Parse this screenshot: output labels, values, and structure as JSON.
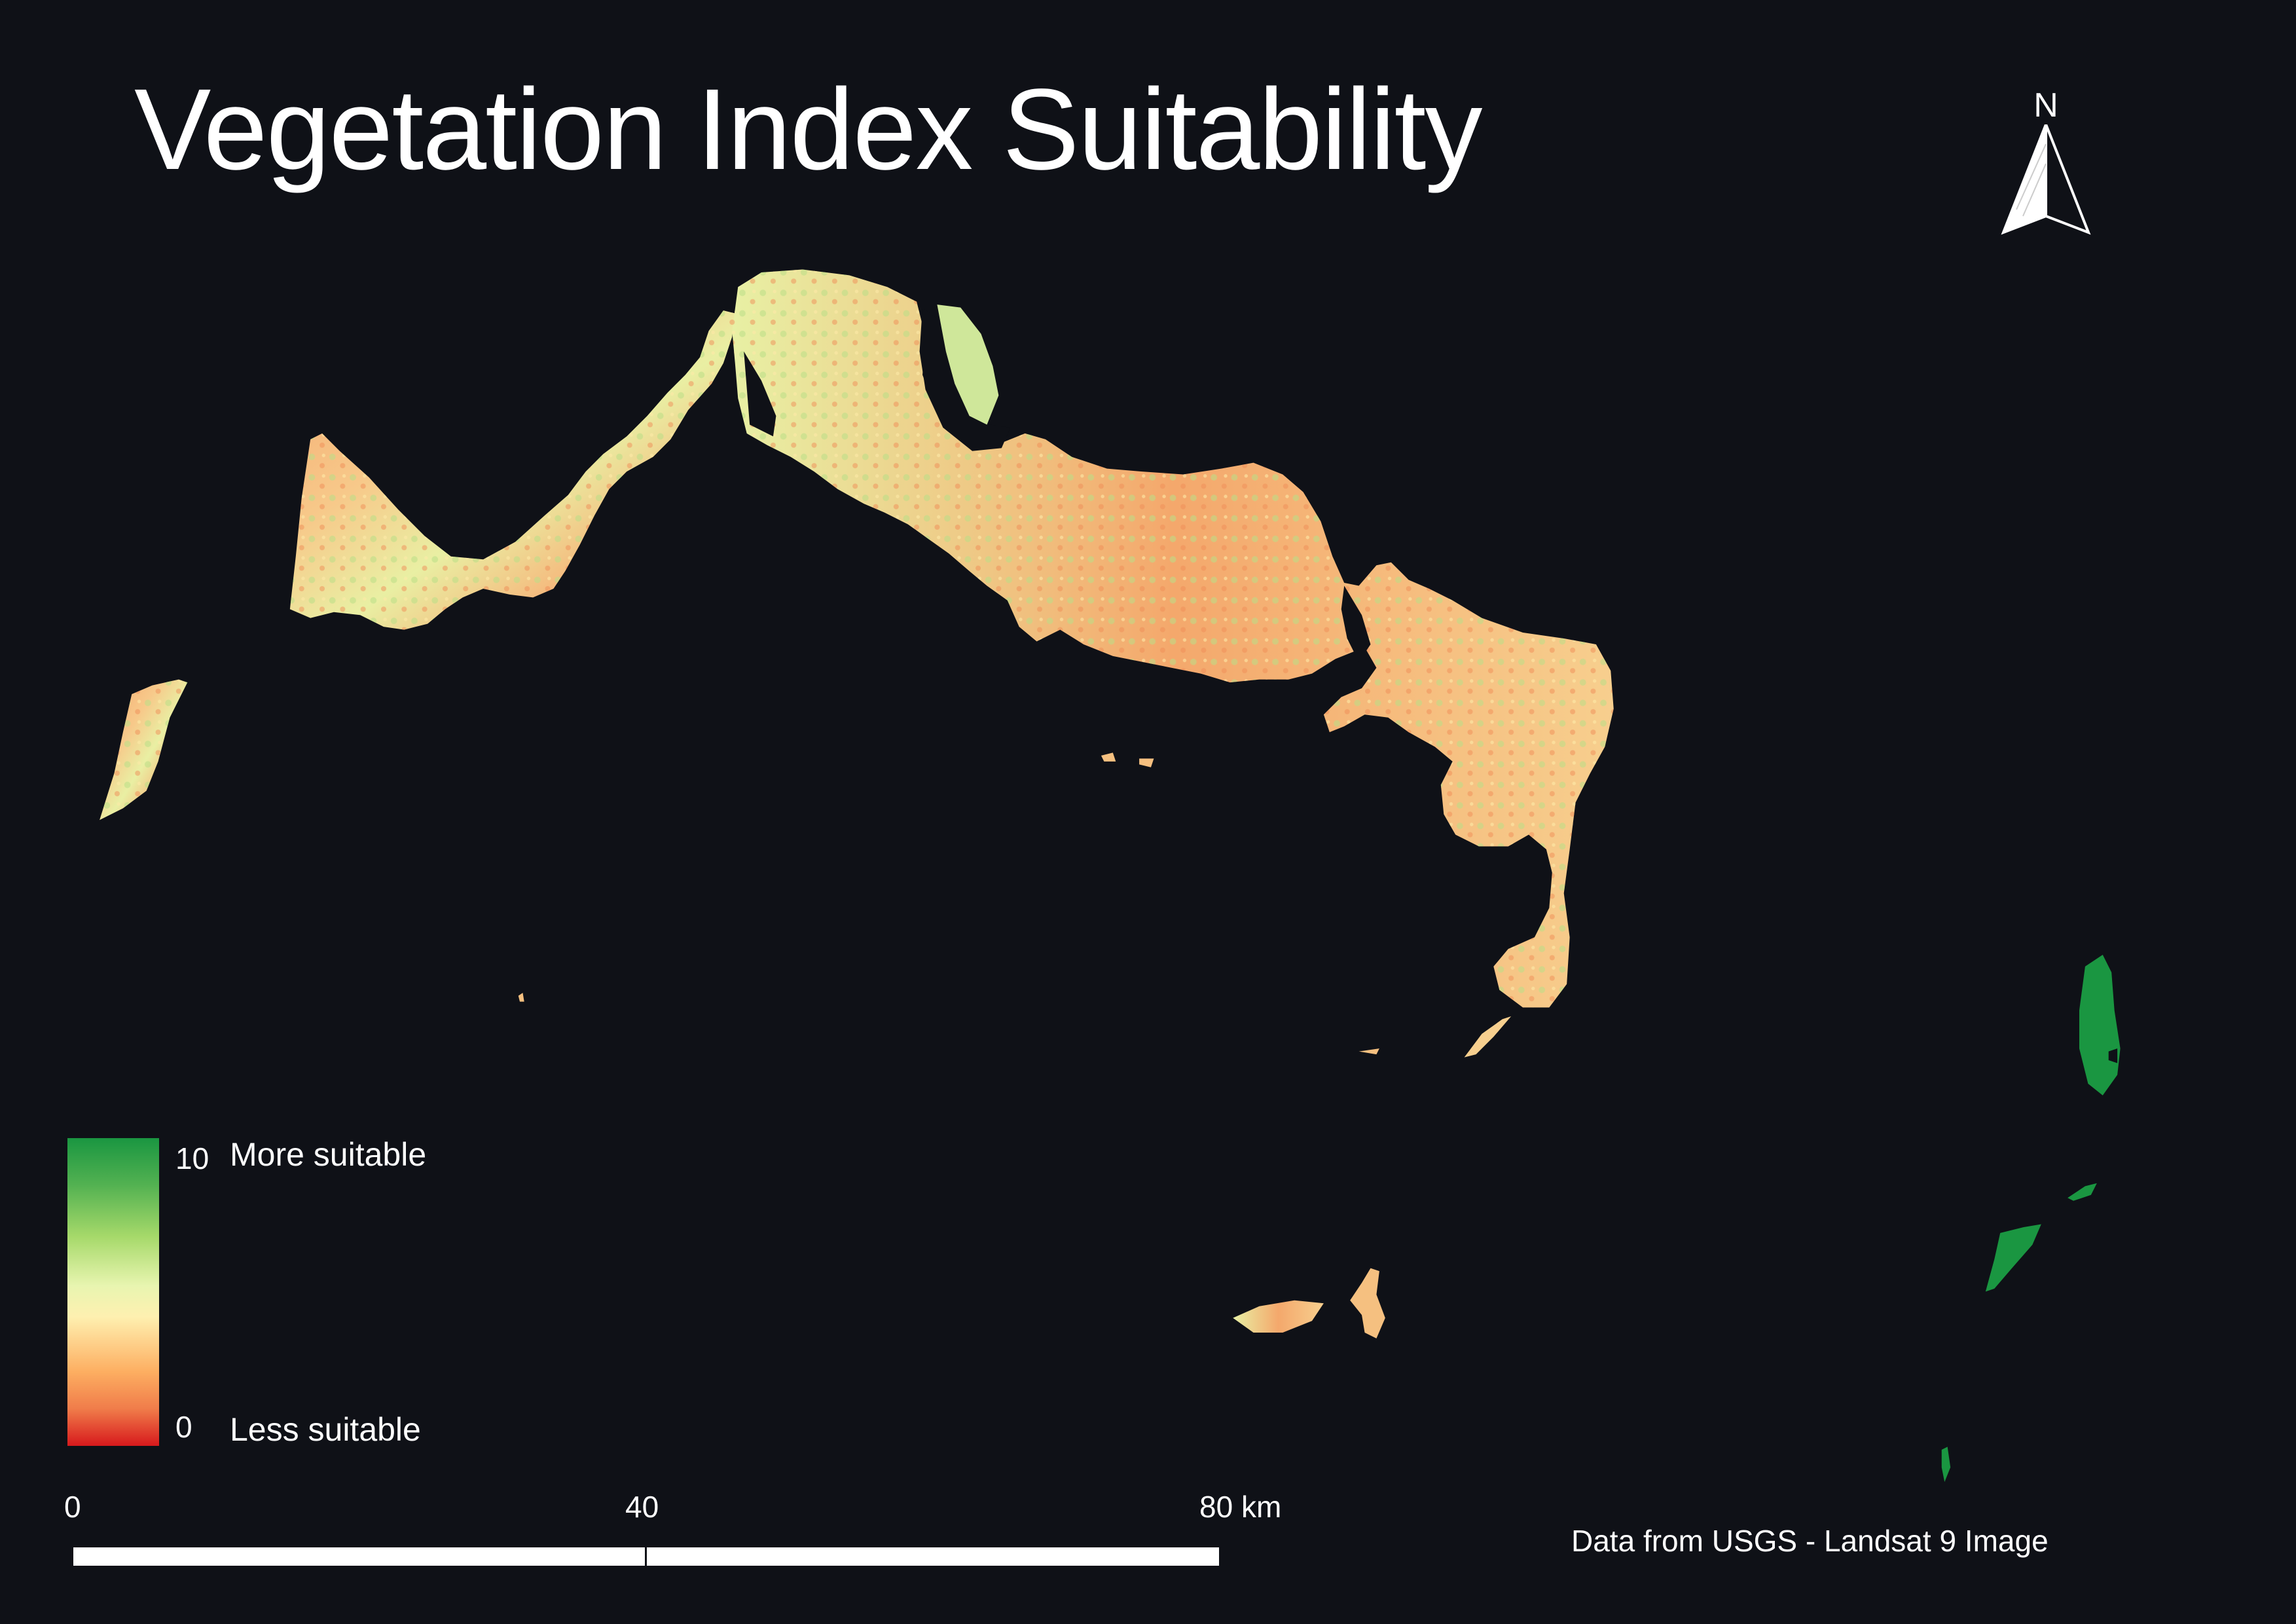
{
  "map": {
    "title": "Vegetation Index Suitability",
    "north_arrow": {
      "label": "N"
    },
    "legend": {
      "max_value": "10",
      "max_label": "More suitable",
      "min_value": "0",
      "min_label": "Less suitable",
      "ramp_colors": [
        "#1a9641",
        "#a6d96a",
        "#fef0b0",
        "#fdae61",
        "#d7191c"
      ]
    },
    "scale_bar": {
      "ticks": [
        "0",
        "40",
        "80 km"
      ]
    },
    "credit": "Data from USGS - Landsat 9 Image",
    "colors": {
      "background": "#0f1117",
      "low_suitability": "#f4a66a",
      "mid_suitability": "#f7f0a0",
      "high_suitability": "#1a9641"
    }
  }
}
